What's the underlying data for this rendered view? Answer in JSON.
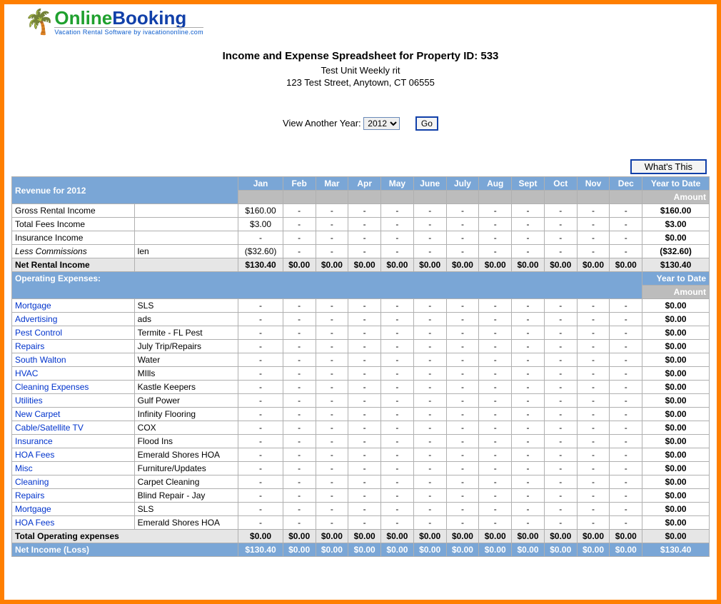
{
  "logo": {
    "online": "Online",
    "booking": "Booking",
    "tagline": "Vacation Rental Software by ivacationonline.com"
  },
  "header": {
    "title": "Income and Expense Spreadsheet for Property ID: 533",
    "subtitle": "Test Unit Weekly rit",
    "address": "123 Test Street, Anytown, CT 06555"
  },
  "year_picker": {
    "label": "View Another Year:",
    "selected": "2012",
    "options": [
      "2012"
    ],
    "go": "Go"
  },
  "whats_this": "What's This",
  "columns": {
    "revenue_label": "Revenue for 2012",
    "months": [
      "Jan",
      "Feb",
      "Mar",
      "Apr",
      "May",
      "June",
      "July",
      "Aug",
      "Sept",
      "Oct",
      "Nov",
      "Dec"
    ],
    "ytd": "Year to Date",
    "amount": "Amount",
    "operating_label": "Operating Expenses:"
  },
  "revenue_rows": [
    {
      "label": "Gross Rental Income",
      "note": "",
      "link": false,
      "italic": false,
      "cells": [
        "$160.00",
        "-",
        "-",
        "-",
        "-",
        "-",
        "-",
        "-",
        "-",
        "-",
        "-",
        "-"
      ],
      "ytd": "$160.00"
    },
    {
      "label": "Total Fees Income",
      "note": "",
      "link": false,
      "italic": false,
      "cells": [
        "$3.00",
        "-",
        "-",
        "-",
        "-",
        "-",
        "-",
        "-",
        "-",
        "-",
        "-",
        "-"
      ],
      "ytd": "$3.00"
    },
    {
      "label": "Insurance Income",
      "note": "",
      "link": false,
      "italic": false,
      "cells": [
        "-",
        "-",
        "-",
        "-",
        "-",
        "-",
        "-",
        "-",
        "-",
        "-",
        "-",
        "-"
      ],
      "ytd": "$0.00"
    },
    {
      "label": "Less Commissions",
      "note": "len",
      "link": false,
      "italic": true,
      "cells": [
        "($32.60)",
        "-",
        "-",
        "-",
        "-",
        "-",
        "-",
        "-",
        "-",
        "-",
        "-",
        "-"
      ],
      "ytd": "($32.60)"
    }
  ],
  "net_rental": {
    "label": "Net Rental Income",
    "cells": [
      "$130.40",
      "$0.00",
      "$0.00",
      "$0.00",
      "$0.00",
      "$0.00",
      "$0.00",
      "$0.00",
      "$0.00",
      "$0.00",
      "$0.00",
      "$0.00"
    ],
    "ytd": "$130.40"
  },
  "expense_rows": [
    {
      "label": "Mortgage",
      "note": "SLS"
    },
    {
      "label": "Advertising",
      "note": "ads"
    },
    {
      "label": "Pest Control",
      "note": "Termite - FL Pest"
    },
    {
      "label": "Repairs",
      "note": "July Trip/Repairs"
    },
    {
      "label": "South Walton",
      "note": "Water"
    },
    {
      "label": "HVAC",
      "note": "MIlls"
    },
    {
      "label": "Cleaning Expenses",
      "note": "Kastle Keepers"
    },
    {
      "label": "Utilities",
      "note": "Gulf Power"
    },
    {
      "label": "New Carpet",
      "note": "Infinity Flooring"
    },
    {
      "label": "Cable/Satellite TV",
      "note": "COX"
    },
    {
      "label": "Insurance",
      "note": "Flood Ins"
    },
    {
      "label": "HOA Fees",
      "note": "Emerald Shores HOA"
    },
    {
      "label": "Misc",
      "note": "Furniture/Updates"
    },
    {
      "label": "Cleaning",
      "note": "Carpet Cleaning"
    },
    {
      "label": "Repairs",
      "note": "Blind Repair - Jay"
    },
    {
      "label": "Mortgage",
      "note": "SLS"
    },
    {
      "label": "HOA Fees",
      "note": "Emerald Shores HOA"
    }
  ],
  "expense_dash_cells": [
    "-",
    "-",
    "-",
    "-",
    "-",
    "-",
    "-",
    "-",
    "-",
    "-",
    "-",
    "-"
  ],
  "expense_ytd": "$0.00",
  "total_expenses": {
    "label": "Total Operating expenses",
    "cells": [
      "$0.00",
      "$0.00",
      "$0.00",
      "$0.00",
      "$0.00",
      "$0.00",
      "$0.00",
      "$0.00",
      "$0.00",
      "$0.00",
      "$0.00",
      "$0.00"
    ],
    "ytd": "$0.00"
  },
  "net_income": {
    "label": "Net Income (Loss)",
    "cells": [
      "$130.40",
      "$0.00",
      "$0.00",
      "$0.00",
      "$0.00",
      "$0.00",
      "$0.00",
      "$0.00",
      "$0.00",
      "$0.00",
      "$0.00",
      "$0.00"
    ],
    "ytd": "$130.40"
  },
  "colors": {
    "frame": "#ff7f00",
    "header_blue": "#7aa6d6",
    "link": "#0033cc",
    "gray": "#bcbcbc"
  }
}
